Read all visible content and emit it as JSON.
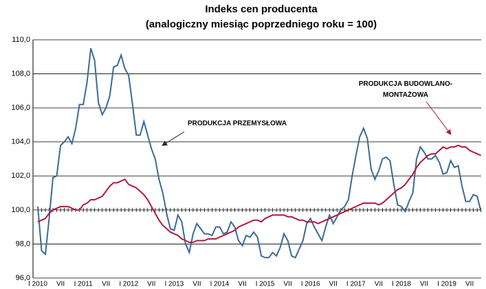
{
  "chart_data": {
    "type": "line",
    "title": "Indeks cen producenta",
    "subtitle": "(analogiczny miesiąc poprzedniego roku = 100)",
    "categories": [
      "I 2010",
      null,
      null,
      null,
      null,
      null,
      "VII",
      null,
      null,
      null,
      null,
      null,
      "I 2011",
      null,
      null,
      null,
      null,
      null,
      "VII",
      null,
      null,
      null,
      null,
      null,
      "I 2012",
      null,
      null,
      null,
      null,
      null,
      "VII",
      null,
      null,
      null,
      null,
      null,
      "I 2013",
      null,
      null,
      null,
      null,
      null,
      "VII",
      null,
      null,
      null,
      null,
      null,
      "I 2014",
      null,
      null,
      null,
      null,
      null,
      "VII",
      null,
      null,
      null,
      null,
      null,
      "I 2015",
      null,
      null,
      null,
      null,
      null,
      "VII",
      null,
      null,
      null,
      null,
      null,
      "I 2016",
      null,
      null,
      null,
      null,
      null,
      "VII",
      null,
      null,
      null,
      null,
      null,
      "I 2017",
      null,
      null,
      null,
      null,
      null,
      "VII",
      null,
      null,
      null,
      null,
      null,
      "I 2018",
      null,
      null,
      null,
      null,
      null,
      "VII",
      null,
      null,
      null,
      null,
      null,
      "I 2019",
      null,
      null,
      null,
      null,
      null,
      "VII",
      null,
      null,
      null
    ],
    "series": [
      {
        "name": "PRODUKCJA PRZEMYSŁOWA",
        "color": "#3a6a96",
        "values": [
          100.2,
          97.6,
          97.4,
          99.5,
          101.9,
          102.0,
          103.8,
          104.0,
          104.3,
          103.9,
          104.8,
          106.2,
          106.2,
          107.5,
          109.5,
          108.8,
          106.3,
          105.6,
          106.0,
          106.7,
          108.4,
          108.5,
          109.1,
          108.3,
          107.9,
          106.2,
          104.4,
          104.4,
          105.2,
          104.4,
          103.6,
          103.0,
          101.8,
          101.0,
          99.8,
          98.9,
          98.8,
          99.7,
          99.3,
          98.0,
          97.5,
          98.6,
          99.2,
          98.9,
          98.6,
          98.6,
          98.5,
          99.0,
          99.0,
          98.6,
          98.7,
          99.3,
          99.0,
          98.2,
          97.9,
          98.5,
          98.4,
          98.7,
          98.4,
          97.3,
          97.2,
          97.2,
          97.5,
          97.3,
          97.8,
          98.6,
          98.2,
          97.3,
          97.2,
          97.7,
          98.2,
          99.2,
          99.5,
          99.0,
          98.6,
          98.2,
          99.0,
          99.7,
          99.2,
          99.6,
          100.0,
          100.2,
          100.6,
          102.0,
          103.2,
          104.3,
          104.8,
          104.2,
          102.4,
          101.8,
          102.3,
          103.0,
          103.1,
          102.9,
          101.5,
          100.3,
          100.2,
          99.9,
          100.5,
          101.0,
          103.0,
          103.7,
          103.4,
          103.0,
          103.0,
          103.2,
          102.8,
          102.1,
          102.2,
          102.9,
          102.5,
          102.6,
          101.4,
          100.5,
          100.5,
          100.9,
          100.8,
          99.9
        ]
      },
      {
        "name": "PRODUKCJA BUDOWLANO-MONTAŻOWA",
        "color": "#b3183c",
        "values": [
          99.3,
          99.4,
          99.5,
          99.8,
          100.0,
          100.1,
          100.2,
          100.2,
          100.2,
          100.1,
          100.0,
          100.0,
          100.3,
          100.4,
          100.6,
          100.6,
          100.7,
          100.8,
          101.1,
          101.4,
          101.6,
          101.6,
          101.7,
          101.8,
          101.5,
          101.4,
          101.3,
          101.1,
          100.9,
          100.6,
          100.2,
          99.8,
          99.4,
          99.1,
          98.9,
          98.7,
          98.6,
          98.5,
          98.3,
          98.2,
          98.1,
          98.1,
          98.2,
          98.2,
          98.2,
          98.3,
          98.3,
          98.3,
          98.4,
          98.5,
          98.6,
          98.7,
          98.8,
          99.0,
          99.1,
          99.2,
          99.3,
          99.4,
          99.4,
          99.3,
          99.5,
          99.6,
          99.7,
          99.7,
          99.7,
          99.7,
          99.6,
          99.6,
          99.5,
          99.4,
          99.4,
          99.3,
          99.3,
          99.3,
          99.2,
          99.3,
          99.4,
          99.5,
          99.6,
          99.7,
          99.8,
          99.9,
          100.0,
          100.1,
          100.2,
          100.3,
          100.4,
          100.4,
          100.4,
          100.4,
          100.3,
          100.4,
          100.6,
          100.8,
          101.0,
          101.2,
          101.3,
          101.5,
          101.8,
          102.1,
          102.5,
          102.8,
          103.0,
          103.2,
          103.3,
          103.3,
          103.5,
          103.7,
          103.6,
          103.7,
          103.7,
          103.8,
          103.7,
          103.7,
          103.5,
          103.4,
          103.3,
          103.2
        ]
      }
    ],
    "ylim": [
      96,
      110
    ],
    "yticks": [
      {
        "value": 96,
        "label": "96,0"
      },
      {
        "value": 98,
        "label": "98,0"
      },
      {
        "value": 100,
        "label": "100,0"
      },
      {
        "value": 102,
        "label": "102,0"
      },
      {
        "value": 104,
        "label": "104,0"
      },
      {
        "value": 106,
        "label": "106,0"
      },
      {
        "value": 108,
        "label": "108,0"
      },
      {
        "value": 110,
        "label": "110,0"
      }
    ],
    "grid": true
  }
}
